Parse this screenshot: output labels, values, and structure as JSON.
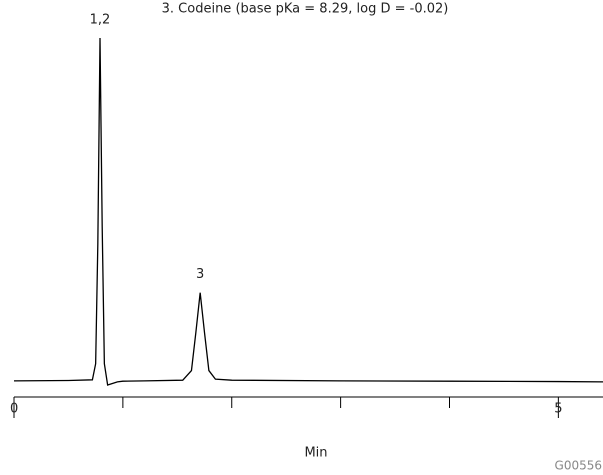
{
  "chart_data": {
    "type": "line",
    "title": "3. Codeine (base pKa = 8.29, log D = -0.02)",
    "xlabel": "Min",
    "code": "G00556",
    "x": [
      0,
      0.5,
      0.72,
      0.75,
      0.77,
      0.79,
      0.81,
      0.83,
      0.86,
      0.9,
      0.95,
      1.0,
      1.2,
      1.55,
      1.63,
      1.67,
      1.71,
      1.75,
      1.79,
      1.85,
      2.0,
      3.0,
      4.0,
      5.0,
      5.41
    ],
    "values": [
      0,
      0.1,
      0.3,
      5,
      40,
      100,
      45,
      5,
      -1.2,
      -0.8,
      -0.3,
      -0.1,
      0,
      0.2,
      3,
      14,
      25.7,
      14,
      3,
      0.5,
      0.2,
      0,
      -0.1,
      -0.2,
      -0.3
    ],
    "color": "#000000",
    "xlim": [
      0,
      5.41
    ],
    "ylim": [
      -5,
      100
    ],
    "xticks": [
      0,
      5
    ],
    "xminor_ticks": [
      1,
      2,
      3,
      4
    ],
    "annotations": [
      {
        "text": "1,2",
        "x": 0.79,
        "y": 100
      },
      {
        "text": "3",
        "x": 1.71,
        "y": 25.7
      }
    ]
  }
}
